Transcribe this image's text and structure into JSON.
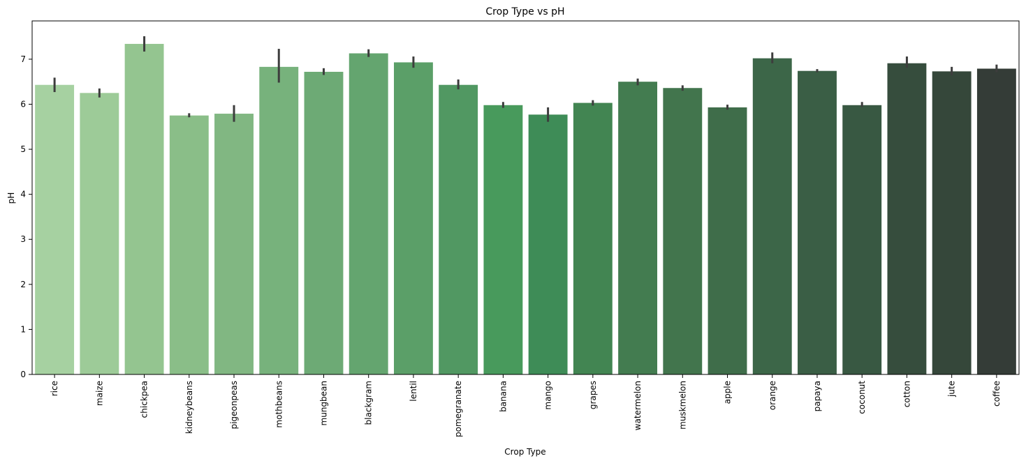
{
  "chart_data": {
    "type": "bar",
    "title": "Crop Type vs pH",
    "xlabel": "Crop Type",
    "ylabel": "pH",
    "ylim": [
      0,
      7.85
    ],
    "yticks": [
      "0",
      "1",
      "2",
      "3",
      "4",
      "5",
      "6",
      "7"
    ],
    "grid": false,
    "legend": "none",
    "categories": [
      "rice",
      "maize",
      "chickpea",
      "kidneybeans",
      "pigeonpeas",
      "mothbeans",
      "mungbean",
      "blackgram",
      "lentil",
      "pomegranate",
      "banana",
      "mango",
      "grapes",
      "watermelon",
      "muskmelon",
      "apple",
      "orange",
      "papaya",
      "coconut",
      "cotton",
      "jute",
      "coffee"
    ],
    "values": [
      6.43,
      6.25,
      7.34,
      5.75,
      5.79,
      6.83,
      6.72,
      7.13,
      6.93,
      6.43,
      5.98,
      5.77,
      6.03,
      6.5,
      6.36,
      5.93,
      7.02,
      6.74,
      5.98,
      6.91,
      6.73,
      6.79
    ],
    "error_low": [
      6.27,
      6.15,
      7.17,
      5.71,
      5.61,
      6.48,
      6.65,
      7.05,
      6.81,
      6.33,
      5.92,
      5.61,
      5.97,
      6.42,
      6.3,
      5.88,
      6.91,
      6.71,
      5.94,
      6.81,
      6.64,
      6.71
    ],
    "error_high": [
      6.59,
      6.35,
      7.51,
      5.8,
      5.98,
      7.23,
      6.8,
      7.22,
      7.06,
      6.55,
      6.05,
      5.93,
      6.09,
      6.57,
      6.42,
      5.99,
      7.15,
      6.78,
      6.05,
      7.06,
      6.83,
      6.88
    ],
    "colors": [
      "#a6d1a1",
      "#9dcb98",
      "#94c590",
      "#8abe88",
      "#81b782",
      "#77b27c",
      "#6daa75",
      "#64a56f",
      "#5b9f68",
      "#519862",
      "#489a5c",
      "#3e8c57",
      "#428552",
      "#437c50",
      "#42754d",
      "#3f6d4a",
      "#3c6648",
      "#3a5e45",
      "#385842",
      "#364d3d",
      "#35473a",
      "#343c37"
    ]
  }
}
